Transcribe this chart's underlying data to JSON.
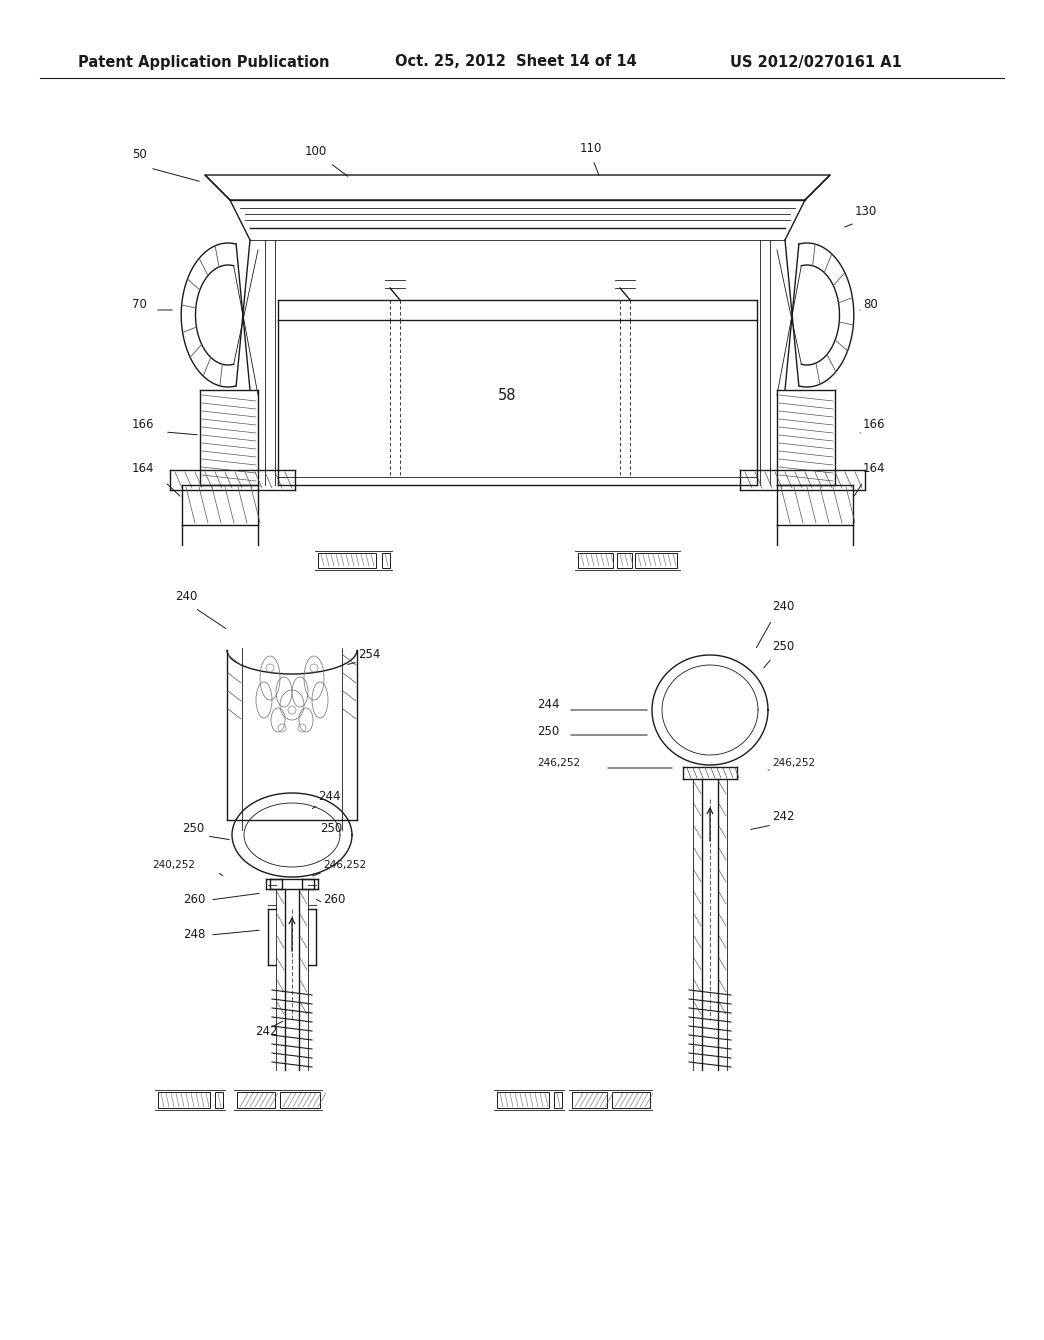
{
  "background_color": "#ffffff",
  "header_left": "Patent Application Publication",
  "header_center": "Oct. 25, 2012  Sheet 14 of 14",
  "header_right": "US 2012/0270161 A1",
  "header_fontsize": 10.5,
  "fig_width": 10.24,
  "fig_height": 13.2,
  "line_color": "#1a1a1a",
  "label_fontsize": 8.5
}
